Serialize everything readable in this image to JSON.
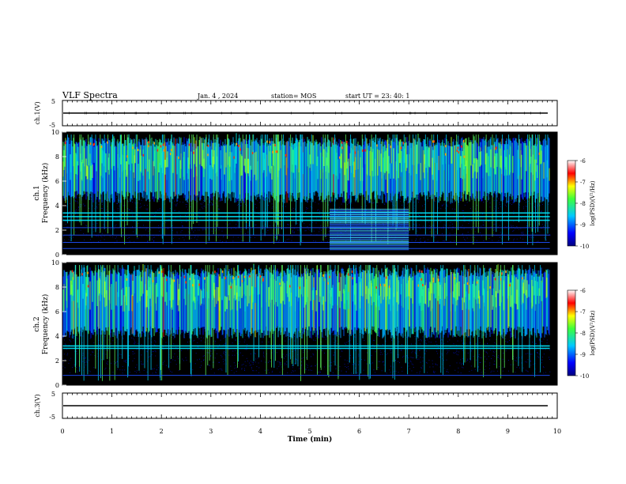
{
  "header": {
    "title": "VLF Spectra",
    "date": "Jan. 4 , 2024",
    "station": "station= MOS",
    "start_ut": "start UT = 23: 40: 1"
  },
  "panels": {
    "ch1_wave_label": "ch.1(V)",
    "ch1_spec_label_top": "ch.1",
    "ch1_spec_label_bottom": "Frequency (kHz)",
    "ch2_spec_label_top": "ch.2",
    "ch2_spec_label_bottom": "Frequency (kHz)",
    "ch3_wave_label": "ch.3(V)"
  },
  "colorbar": {
    "label": "log(PSD)(V²/Hz)",
    "ticks": [
      "-6",
      "-7",
      "-8",
      "-9",
      "-10"
    ]
  },
  "colors": {
    "background": "#000000",
    "low": "#0000c8",
    "mid": "#00c8ff",
    "green": "#3cff3c",
    "high": "#ff0000"
  },
  "chart_data": [
    {
      "type": "line",
      "name_label": "ch.1(V)",
      "xlabel": "",
      "ylim": [
        -5,
        5
      ],
      "y_ticks": [
        "5",
        "-5"
      ],
      "xlim": [
        0,
        10
      ],
      "x_ticks": [
        "0",
        "1",
        "2",
        "3",
        "4",
        "5",
        "6",
        "7",
        "8",
        "9",
        "10"
      ],
      "description_values": {
        "baseline_V": 0
      }
    },
    {
      "type": "heatmap",
      "ylabel": "Frequency (kHz)",
      "ylim": [
        0,
        10
      ],
      "y_ticks": [
        "0",
        "2",
        "4",
        "6",
        "8",
        "10"
      ],
      "xlim": [
        0,
        10
      ],
      "clim": [
        -10,
        -6
      ],
      "bands_kHz": [
        0.5,
        1.0,
        1.6,
        2.2,
        2.8,
        3.1,
        3.4
      ],
      "broadband_interval_min": [
        5.4,
        7.0
      ]
    },
    {
      "type": "heatmap",
      "ylabel": "Frequency (kHz)",
      "ylim": [
        0,
        10
      ],
      "y_ticks": [
        "0",
        "2",
        "4",
        "6",
        "8",
        "10"
      ],
      "xlim": [
        0,
        10
      ],
      "clim": [
        -10,
        -6
      ],
      "bands_kHz": [
        0.8,
        3.0,
        3.2
      ]
    },
    {
      "type": "line",
      "name_label": "ch.3(V)",
      "ylim": [
        -5,
        5
      ],
      "y_ticks": [
        "5",
        "-5"
      ],
      "xlim": [
        0,
        10
      ],
      "x_ticks": [
        "0",
        "1",
        "2",
        "3",
        "4",
        "5",
        "6",
        "7",
        "8",
        "9",
        "10"
      ],
      "xlabel": "Time (min)",
      "description_values": {
        "baseline_V": 0
      }
    }
  ]
}
